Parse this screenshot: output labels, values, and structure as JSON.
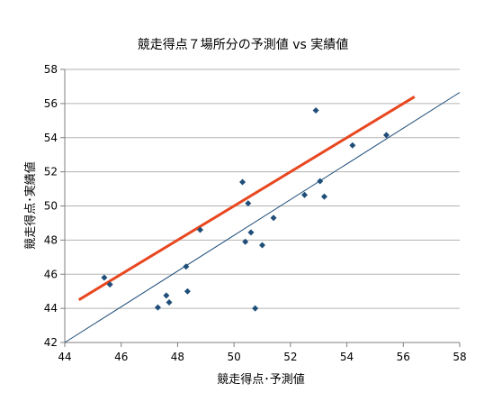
{
  "chart_data": {
    "type": "scatter",
    "title": "競走得点７場所分の予測値 vs 実績値",
    "xlabel": "競走得点･予測値",
    "ylabel": "競走得点･実績値",
    "xlim": [
      44,
      58
    ],
    "ylim": [
      42,
      58
    ],
    "x_ticks": [
      "44",
      "46",
      "48",
      "50",
      "52",
      "54",
      "56",
      "58"
    ],
    "y_ticks": [
      "42",
      "44",
      "46",
      "48",
      "50",
      "52",
      "54",
      "56",
      "58"
    ],
    "grid": "horizontal",
    "legend": "none",
    "colors": {
      "points": "#1f4e79",
      "trend_line": "#e8471f",
      "identity_line": "#1f4e79",
      "grid": "#b3b3b3",
      "axis": "#7f7f7f"
    },
    "series": [
      {
        "marker": "diamond",
        "x": [
          45.4,
          45.6,
          47.3,
          47.6,
          47.7,
          48.3,
          48.35,
          48.8,
          50.3,
          50.4,
          50.5,
          50.6,
          50.75,
          51.0,
          51.4,
          52.5,
          52.9,
          53.05,
          53.2,
          54.2,
          55.4
        ],
        "y": [
          45.8,
          45.4,
          44.05,
          44.75,
          44.35,
          46.45,
          45.0,
          48.6,
          51.4,
          47.9,
          50.15,
          48.45,
          44.0,
          47.7,
          49.3,
          50.65,
          55.6,
          51.45,
          50.55,
          53.55,
          54.15
        ]
      }
    ],
    "trend_line": {
      "x": [
        44.5,
        56.4
      ],
      "y": [
        44.5,
        56.4
      ]
    },
    "identity_line": {
      "x": [
        44,
        58
      ],
      "y": [
        42,
        56.65
      ]
    }
  }
}
